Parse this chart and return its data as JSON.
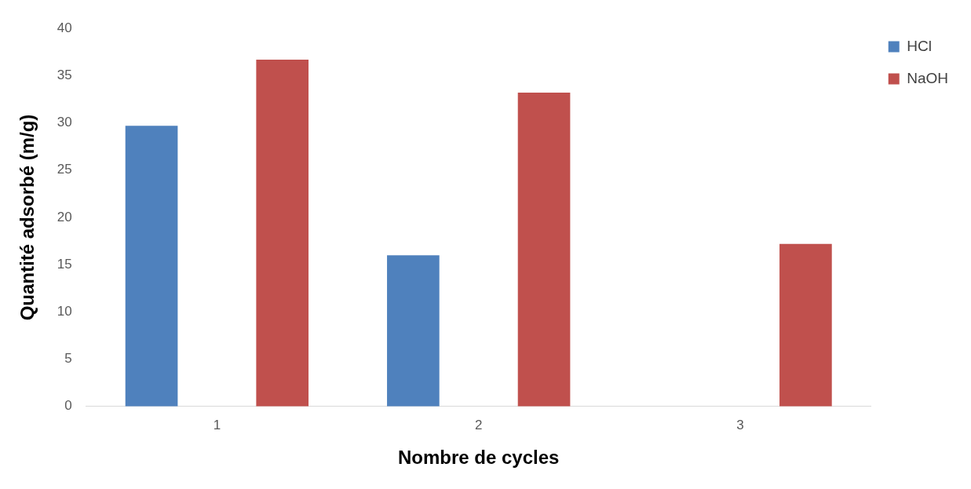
{
  "chart_data": {
    "type": "bar",
    "xlabel": "Nombre de cycles",
    "ylabel": "Quantité adsorbé (m/g)",
    "categories": [
      "1",
      "2",
      "3"
    ],
    "series": [
      {
        "name": "HCl",
        "color": "#4f81bd",
        "values": [
          29.7,
          16.0,
          0
        ]
      },
      {
        "name": "NaOH",
        "color": "#c0504d",
        "values": [
          36.7,
          33.2,
          17.2
        ]
      }
    ],
    "ylim": [
      0,
      40
    ],
    "yticks": [
      0,
      5,
      10,
      15,
      20,
      25,
      30,
      35,
      40
    ],
    "grid": false,
    "legend": "top right"
  }
}
